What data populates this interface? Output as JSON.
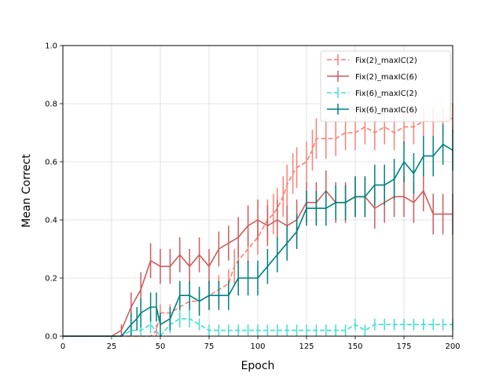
{
  "chart_data": {
    "type": "line",
    "title": "",
    "xlabel": "Epoch",
    "ylabel": "Mean Correct",
    "xlim": [
      0,
      200
    ],
    "ylim": [
      0,
      1.0
    ],
    "xticks": [
      0,
      25,
      50,
      75,
      100,
      125,
      150,
      175,
      200
    ],
    "yticks": [
      0.0,
      0.2,
      0.4,
      0.6,
      0.8,
      1.0
    ],
    "xtick_labels": [
      "0",
      "25",
      "50",
      "75",
      "100",
      "125",
      "150",
      "175",
      "200"
    ],
    "ytick_labels": [
      "0.0",
      "0.2",
      "0.4",
      "0.6",
      "0.8",
      "1.0"
    ],
    "grid": true,
    "legend_position": "top-right",
    "series": [
      {
        "name": "Fix(2)_maxIC(2)",
        "color": "#fa8072",
        "dashed": true,
        "x": [
          0,
          25,
          30,
          35,
          40,
          45,
          48,
          50,
          55,
          60,
          65,
          70,
          75,
          80,
          85,
          88,
          90,
          95,
          100,
          105,
          108,
          110,
          113,
          115,
          118,
          120,
          125,
          128,
          130,
          135,
          140,
          145,
          150,
          155,
          160,
          165,
          170,
          175,
          180,
          185,
          190,
          195,
          200
        ],
        "y": [
          0,
          0,
          0,
          0,
          0,
          0,
          0.02,
          0.08,
          0.08,
          0.1,
          0.12,
          0.12,
          0.14,
          0.16,
          0.18,
          0.24,
          0.26,
          0.3,
          0.34,
          0.4,
          0.42,
          0.44,
          0.48,
          0.52,
          0.56,
          0.58,
          0.6,
          0.64,
          0.68,
          0.68,
          0.68,
          0.7,
          0.7,
          0.72,
          0.7,
          0.72,
          0.7,
          0.72,
          0.72,
          0.74,
          0.74,
          0.74,
          0.75
        ],
        "err": [
          0,
          0,
          0,
          0,
          0,
          0,
          0.02,
          0.03,
          0.03,
          0.04,
          0.04,
          0.04,
          0.05,
          0.05,
          0.05,
          0.06,
          0.06,
          0.06,
          0.06,
          0.07,
          0.07,
          0.07,
          0.07,
          0.07,
          0.07,
          0.07,
          0.07,
          0.07,
          0.07,
          0.07,
          0.06,
          0.06,
          0.06,
          0.06,
          0.06,
          0.06,
          0.06,
          0.06,
          0.06,
          0.05,
          0.05,
          0.05,
          0.05
        ]
      },
      {
        "name": "Fix(2)_maxIC(6)",
        "color": "#cd5c5c",
        "dashed": false,
        "x": [
          0,
          25,
          30,
          35,
          40,
          45,
          50,
          55,
          60,
          65,
          70,
          75,
          80,
          85,
          90,
          95,
          100,
          105,
          110,
          115,
          120,
          125,
          130,
          135,
          140,
          145,
          150,
          155,
          160,
          165,
          170,
          175,
          180,
          185,
          190,
          195,
          200
        ],
        "y": [
          0,
          0,
          0.02,
          0.1,
          0.16,
          0.26,
          0.24,
          0.24,
          0.28,
          0.24,
          0.28,
          0.24,
          0.3,
          0.32,
          0.34,
          0.38,
          0.4,
          0.38,
          0.4,
          0.38,
          0.4,
          0.46,
          0.46,
          0.5,
          0.46,
          0.46,
          0.48,
          0.48,
          0.44,
          0.46,
          0.48,
          0.48,
          0.46,
          0.5,
          0.42,
          0.42,
          0.42
        ],
        "err": [
          0,
          0,
          0.02,
          0.05,
          0.06,
          0.06,
          0.06,
          0.06,
          0.06,
          0.06,
          0.06,
          0.06,
          0.06,
          0.06,
          0.07,
          0.07,
          0.07,
          0.07,
          0.07,
          0.07,
          0.07,
          0.07,
          0.07,
          0.07,
          0.07,
          0.07,
          0.07,
          0.07,
          0.07,
          0.07,
          0.07,
          0.07,
          0.07,
          0.07,
          0.07,
          0.07,
          0.07
        ]
      },
      {
        "name": "Fix(6)_maxIC(2)",
        "color": "#40e0d0",
        "dashed": true,
        "x": [
          0,
          25,
          30,
          35,
          40,
          45,
          50,
          55,
          60,
          65,
          70,
          75,
          80,
          85,
          90,
          95,
          100,
          105,
          110,
          115,
          120,
          125,
          130,
          135,
          140,
          145,
          150,
          155,
          160,
          165,
          170,
          175,
          180,
          185,
          190,
          195,
          200
        ],
        "y": [
          0,
          0,
          0,
          0.02,
          0.02,
          0.04,
          0,
          0.04,
          0.06,
          0.06,
          0.04,
          0.02,
          0.02,
          0.02,
          0.02,
          0.02,
          0.02,
          0.02,
          0.02,
          0.02,
          0.02,
          0.02,
          0.02,
          0.02,
          0.02,
          0.02,
          0.04,
          0.02,
          0.04,
          0.04,
          0.04,
          0.04,
          0.04,
          0.04,
          0.04,
          0.04,
          0.04
        ],
        "err": [
          0,
          0,
          0,
          0.02,
          0.02,
          0.03,
          0,
          0.03,
          0.03,
          0.03,
          0.02,
          0.02,
          0.02,
          0.02,
          0.02,
          0.02,
          0.02,
          0.02,
          0.02,
          0.02,
          0.02,
          0.02,
          0.02,
          0.02,
          0.02,
          0.02,
          0.02,
          0.02,
          0.02,
          0.02,
          0.02,
          0.02,
          0.02,
          0.02,
          0.02,
          0.02,
          0.02
        ]
      },
      {
        "name": "Fix(6)_maxIC(6)",
        "color": "#008080",
        "dashed": false,
        "x": [
          0,
          25,
          30,
          35,
          38,
          40,
          45,
          48,
          50,
          55,
          60,
          65,
          70,
          75,
          80,
          85,
          90,
          95,
          100,
          105,
          110,
          115,
          120,
          125,
          130,
          135,
          140,
          145,
          150,
          155,
          160,
          165,
          170,
          175,
          180,
          185,
          190,
          195,
          200
        ],
        "y": [
          0,
          0,
          0,
          0.04,
          0.06,
          0.08,
          0.1,
          0.1,
          0.04,
          0.06,
          0.14,
          0.14,
          0.12,
          0.14,
          0.14,
          0.14,
          0.2,
          0.2,
          0.2,
          0.24,
          0.28,
          0.32,
          0.36,
          0.44,
          0.44,
          0.44,
          0.46,
          0.46,
          0.48,
          0.48,
          0.52,
          0.52,
          0.54,
          0.6,
          0.56,
          0.62,
          0.62,
          0.66,
          0.64
        ],
        "err": [
          0,
          0,
          0,
          0.04,
          0.04,
          0.05,
          0.05,
          0.05,
          0.04,
          0.04,
          0.05,
          0.05,
          0.05,
          0.05,
          0.05,
          0.05,
          0.06,
          0.06,
          0.06,
          0.06,
          0.06,
          0.06,
          0.06,
          0.06,
          0.06,
          0.06,
          0.06,
          0.06,
          0.07,
          0.07,
          0.07,
          0.07,
          0.07,
          0.07,
          0.07,
          0.07,
          0.07,
          0.07,
          0.07
        ]
      }
    ]
  }
}
